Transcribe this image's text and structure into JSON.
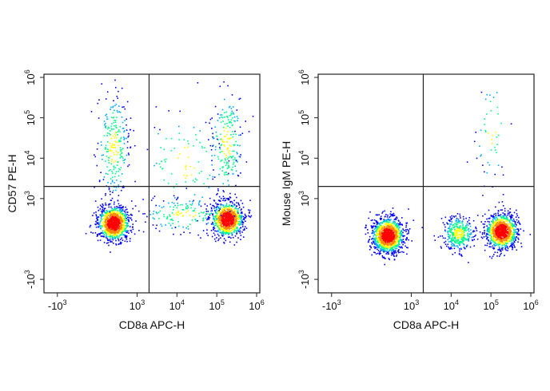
{
  "chart_data": [
    {
      "type": "scatter",
      "subtype": "flow-cytometry-density-plot",
      "xlabel": "CD8a APC-H",
      "ylabel": "CD57 PE-H",
      "scale": "biexponential",
      "x_ticks": [
        {
          "base": "-10",
          "exp": "3",
          "value": -1000
        },
        {
          "base": "10",
          "exp": "3",
          "value": 1000
        },
        {
          "base": "10",
          "exp": "4",
          "value": 10000
        },
        {
          "base": "10",
          "exp": "5",
          "value": 100000
        },
        {
          "base": "10",
          "exp": "6",
          "value": 1000000
        }
      ],
      "y_ticks": [
        {
          "base": "-10",
          "exp": "3",
          "value": -1000
        },
        {
          "base": "10",
          "exp": "3",
          "value": 1000
        },
        {
          "base": "10",
          "exp": "4",
          "value": 10000
        },
        {
          "base": "10",
          "exp": "5",
          "value": 100000
        },
        {
          "base": "10",
          "exp": "6",
          "value": 1000000
        }
      ],
      "quadrant_gate": {
        "x": 2000,
        "y": 2000
      },
      "populations": [
        {
          "x": 400,
          "y": 400,
          "weight": 0.38
        },
        {
          "x": 180000,
          "y": 500,
          "weight": 0.34
        },
        {
          "x": 400,
          "y": 20000,
          "weight": 0.1
        },
        {
          "x": 170000,
          "y": 25000,
          "weight": 0.08
        },
        {
          "x": 15000,
          "y": 600,
          "weight": 0.06
        },
        {
          "x": 15000,
          "y": 8000,
          "weight": 0.04
        }
      ],
      "colormap": [
        "#0000ff",
        "#00aaff",
        "#00ff88",
        "#ffff00",
        "#ff8800",
        "#ff0000"
      ]
    },
    {
      "type": "scatter",
      "subtype": "flow-cytometry-density-plot",
      "xlabel": "CD8a APC-H",
      "ylabel": "Mouse IgM PE-H",
      "scale": "biexponential",
      "x_ticks": [
        {
          "base": "-10",
          "exp": "3",
          "value": -1000
        },
        {
          "base": "10",
          "exp": "3",
          "value": 1000
        },
        {
          "base": "10",
          "exp": "4",
          "value": 10000
        },
        {
          "base": "10",
          "exp": "5",
          "value": 100000
        },
        {
          "base": "10",
          "exp": "6",
          "value": 1000000
        }
      ],
      "y_ticks": [
        {
          "base": "-10",
          "exp": "3",
          "value": -1000
        },
        {
          "base": "10",
          "exp": "3",
          "value": 1000
        },
        {
          "base": "10",
          "exp": "4",
          "value": 10000
        },
        {
          "base": "10",
          "exp": "5",
          "value": 100000
        },
        {
          "base": "10",
          "exp": "6",
          "value": 1000000
        }
      ],
      "quadrant_gate": {
        "x": 2000,
        "y": 2000
      },
      "populations": [
        {
          "x": 400,
          "y": 100,
          "weight": 0.46
        },
        {
          "x": 180000,
          "y": 200,
          "weight": 0.38
        },
        {
          "x": 15000,
          "y": 150,
          "weight": 0.14
        },
        {
          "x": 100000,
          "y": 50000,
          "weight": 0.02
        }
      ],
      "colormap": [
        "#0000ff",
        "#00aaff",
        "#00ff88",
        "#ffff00",
        "#ff8800",
        "#ff0000"
      ]
    }
  ]
}
